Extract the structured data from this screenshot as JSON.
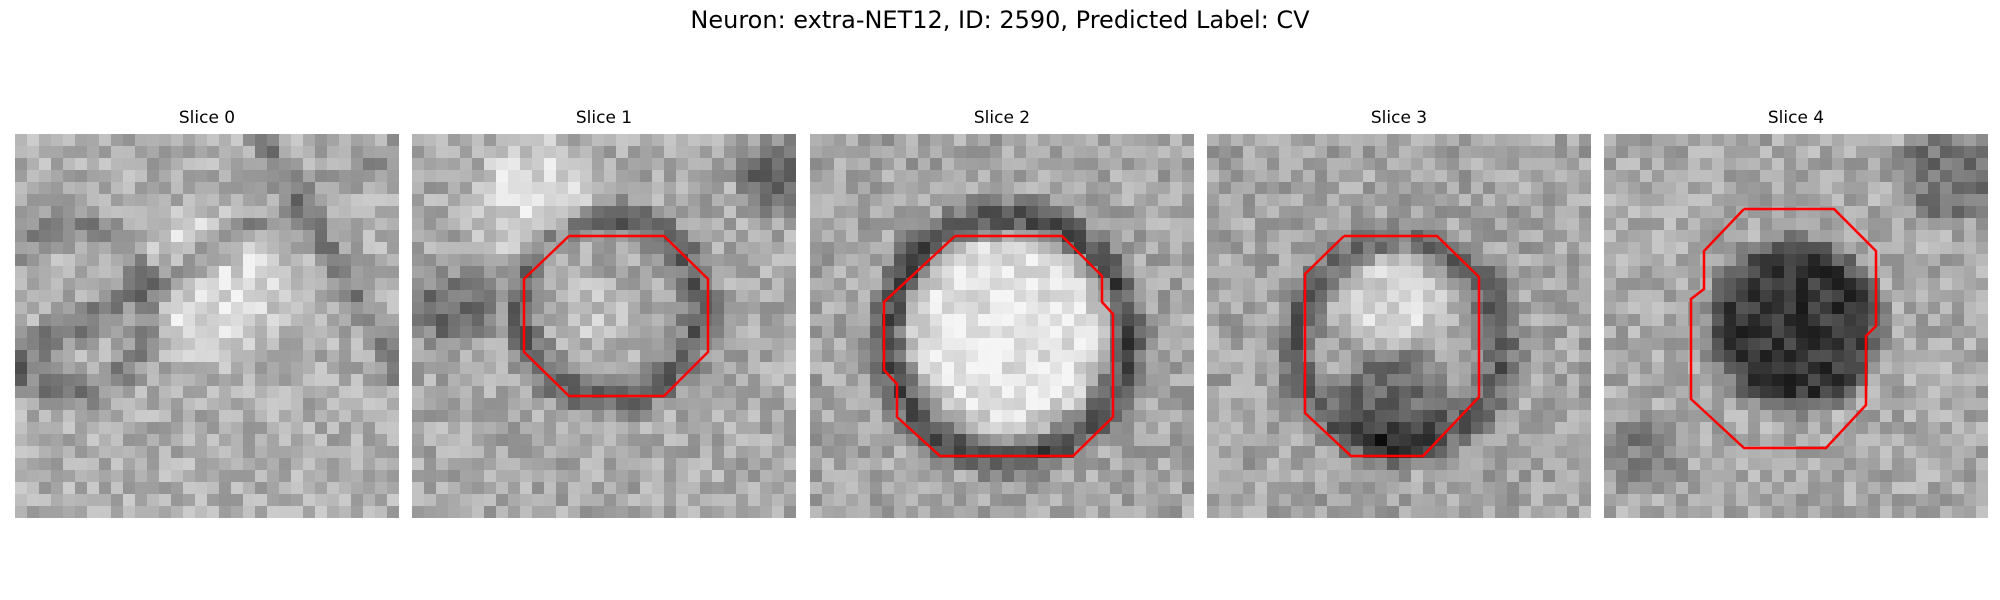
{
  "figure": {
    "title": "Neuron: extra-NET12, ID: 2590, Predicted Label: CV",
    "contour_color": "#ff0000"
  },
  "slices": [
    {
      "title": "Slice 0",
      "contour": false
    },
    {
      "title": "Slice 1",
      "contour": true
    },
    {
      "title": "Slice 2",
      "contour": true
    },
    {
      "title": "Slice 3",
      "contour": true
    },
    {
      "title": "Slice 4",
      "contour": true
    }
  ]
}
